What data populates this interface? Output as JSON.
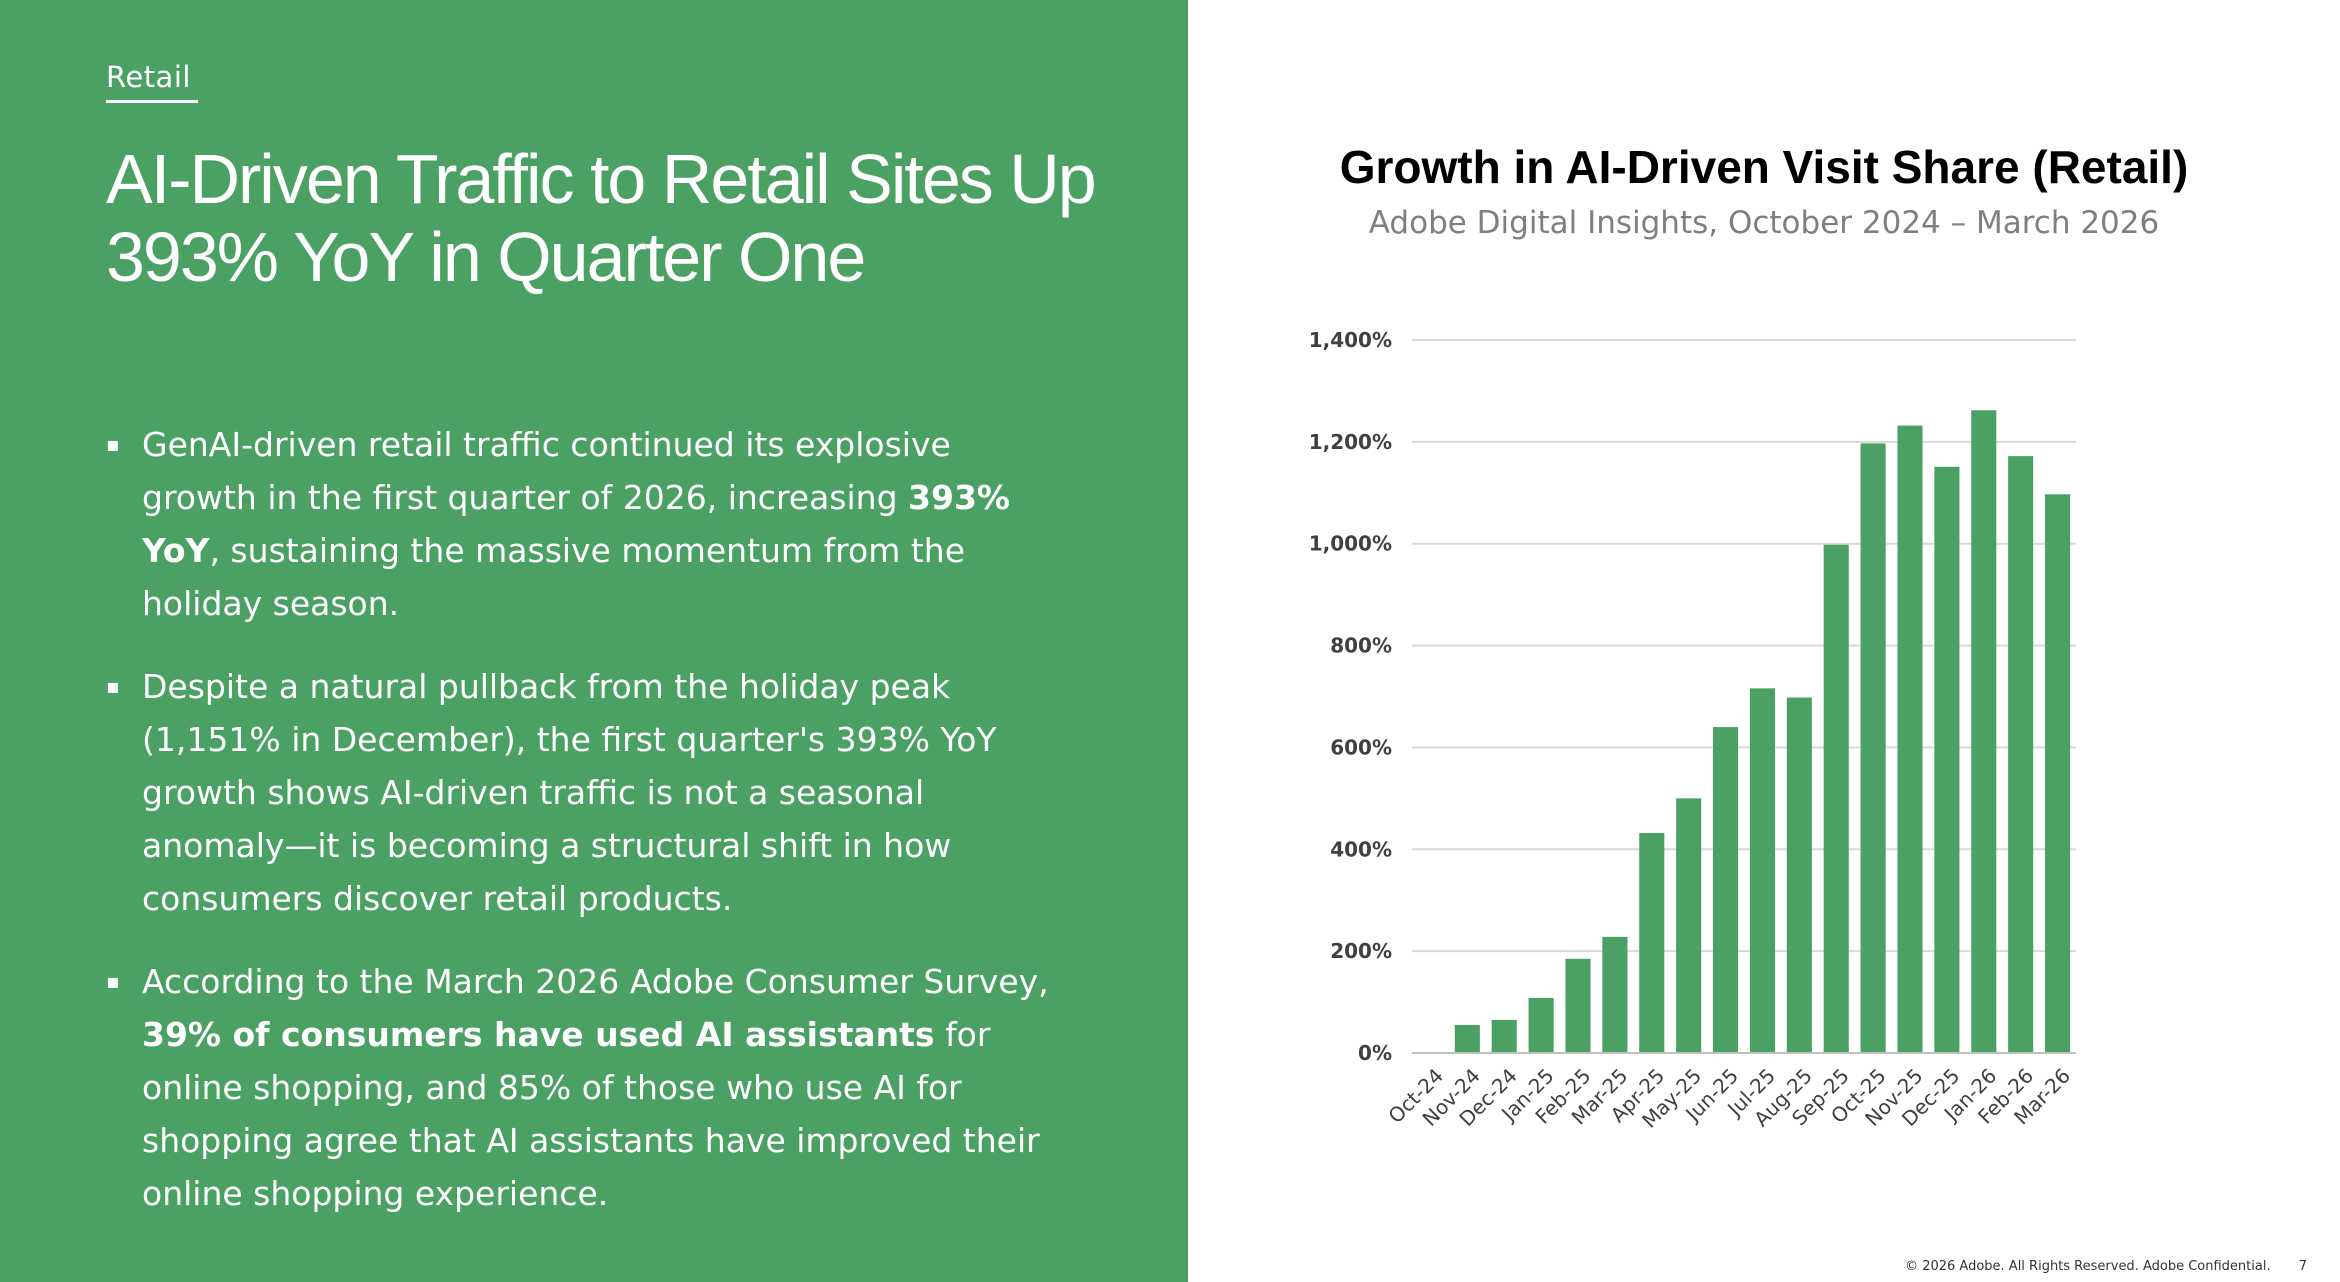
{
  "left": {
    "section_tag": "Retail",
    "headline": "AI-Driven Traffic to Retail Sites Up 393% YoY in Quarter One",
    "bullets": [
      {
        "pre": "GenAI-driven retail traffic continued its explosive growth in the first quarter of 2026, increasing ",
        "bold": "393% YoY",
        "post": ", sustaining the massive momentum from the holiday season."
      },
      {
        "pre": "Despite a natural pullback from the holiday peak (1,151% in December), the first quarter's 393% YoY growth shows AI-driven traffic is not a seasonal anomaly—it is becoming a structural shift in how consumers discover retail products.",
        "bold": "",
        "post": ""
      },
      {
        "pre": "According to the March 2026 Adobe Consumer Survey, ",
        "bold": "39% of consumers have used AI assistants",
        "post": " for online shopping, and 85% of those who use AI for shopping agree that AI assistants have improved their online shopping experience."
      }
    ]
  },
  "chart_data": {
    "type": "bar",
    "title": "Growth in AI-Driven Visit Share (Retail)",
    "subtitle": "Adobe Digital Insights, October 2024 – March 2026",
    "categories": [
      "Oct-24",
      "Nov-24",
      "Dec-24",
      "Jan-25",
      "Feb-25",
      "Mar-25",
      "Apr-25",
      "May-25",
      "Jun-25",
      "Jul-25",
      "Aug-25",
      "Sep-25",
      "Oct-25",
      "Nov-25",
      "Dec-25",
      "Jan-26",
      "Feb-26",
      "Mar-26"
    ],
    "values": [
      0,
      55,
      65,
      108,
      185,
      228,
      432,
      500,
      640,
      716,
      698,
      998,
      1197,
      1232,
      1151,
      1262,
      1172,
      1097
    ],
    "ylim": [
      0,
      1400
    ],
    "yticks": [
      0,
      200,
      400,
      600,
      800,
      1000,
      1200,
      1400
    ],
    "ytick_labels": [
      "0%",
      "200%",
      "400%",
      "600%",
      "800%",
      "1,000%",
      "1,200%",
      "1,400%"
    ],
    "grid": true,
    "legend": "none",
    "bar_color": "#4aa163"
  },
  "footer": {
    "copyright": "© 2026 Adobe. All Rights Reserved. Adobe Confidential.",
    "page_number": "7"
  },
  "colors": {
    "panel_green": "#4aa163",
    "bar_green": "#4aa163",
    "gridline": "#d9d9d9"
  }
}
